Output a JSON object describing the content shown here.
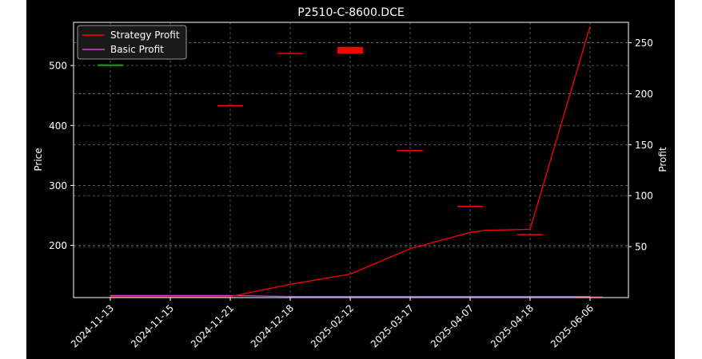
{
  "chart_data": {
    "type": "candlestick+line",
    "title": "P2510-C-8600.DCE",
    "ylabel_left": "Price",
    "ylabel_right": "Profit",
    "categories": [
      "2024-11-13",
      "2024-11-15",
      "2024-11-21",
      "2024-12-18",
      "2025-02-12",
      "2025-03-17",
      "2025-04-07",
      "2025-04-18",
      "2025-06-06"
    ],
    "left_axis": {
      "ylim": [
        113,
        572
      ],
      "ticks": [
        200,
        300,
        400,
        500
      ]
    },
    "right_axis": {
      "ylim": [
        0,
        270
      ],
      "ticks": [
        50,
        100,
        150,
        200,
        250
      ]
    },
    "candles": [
      {
        "x": "2024-11-13",
        "open": 499,
        "close": 502,
        "color": "#1e8c1e"
      },
      {
        "x": "2024-11-21",
        "open": 434,
        "close": 433,
        "color": "#ff0000"
      },
      {
        "x": "2024-12-18",
        "open": 521,
        "close": 520,
        "color": "#ff0000"
      },
      {
        "x": "2025-02-12",
        "open": 531,
        "close": 520,
        "color": "#ff0000"
      },
      {
        "x": "2025-03-17",
        "open": 359,
        "close": 358,
        "color": "#ff0000"
      },
      {
        "x": "2025-04-07",
        "open": 266,
        "close": 265,
        "color": "#ff0000"
      },
      {
        "x": "2025-04-18",
        "open": 219,
        "close": 218,
        "color": "#ff0000"
      },
      {
        "x": "2025-06-06",
        "open": 115,
        "close": 114,
        "color": "#ff0000"
      }
    ],
    "series": [
      {
        "name": "Strategy Profit",
        "color": "#ff0000",
        "points": [
          {
            "x": "2024-11-13",
            "y": 1
          },
          {
            "x": "2024-11-15",
            "y": 1
          },
          {
            "x": "2024-11-21",
            "y": 1
          },
          {
            "x": "2024-12-18",
            "y": 13
          },
          {
            "x": "2025-02-12",
            "y": 23
          },
          {
            "x": "2025-03-17",
            "y": 48
          },
          {
            "x": "2025-04-07",
            "y": 64
          },
          {
            "x": "2025-04-10",
            "y": 66
          },
          {
            "x": "2025-04-18",
            "y": 67
          },
          {
            "x": "2025-06-06",
            "y": 266
          }
        ]
      },
      {
        "name": "Basic Profit",
        "color": "#cc44cc",
        "points": [
          {
            "x": "2024-11-13",
            "y": 2
          },
          {
            "x": "2024-11-15",
            "y": 2
          },
          {
            "x": "2024-11-21",
            "y": 2
          },
          {
            "x": "2024-12-18",
            "y": 1
          },
          {
            "x": "2025-02-12",
            "y": 1
          },
          {
            "x": "2025-03-17",
            "y": 1
          },
          {
            "x": "2025-04-07",
            "y": 1
          },
          {
            "x": "2025-04-18",
            "y": 1
          },
          {
            "x": "2025-06-06",
            "y": 1
          }
        ]
      }
    ],
    "grid": true,
    "legend_position": "top-left",
    "colors": {
      "background": "#000000",
      "plot_background": "#000000",
      "frame": "#ffffff",
      "grid": "#666666",
      "text": "#ffffff",
      "legend_background": "#1a1a1a"
    }
  }
}
